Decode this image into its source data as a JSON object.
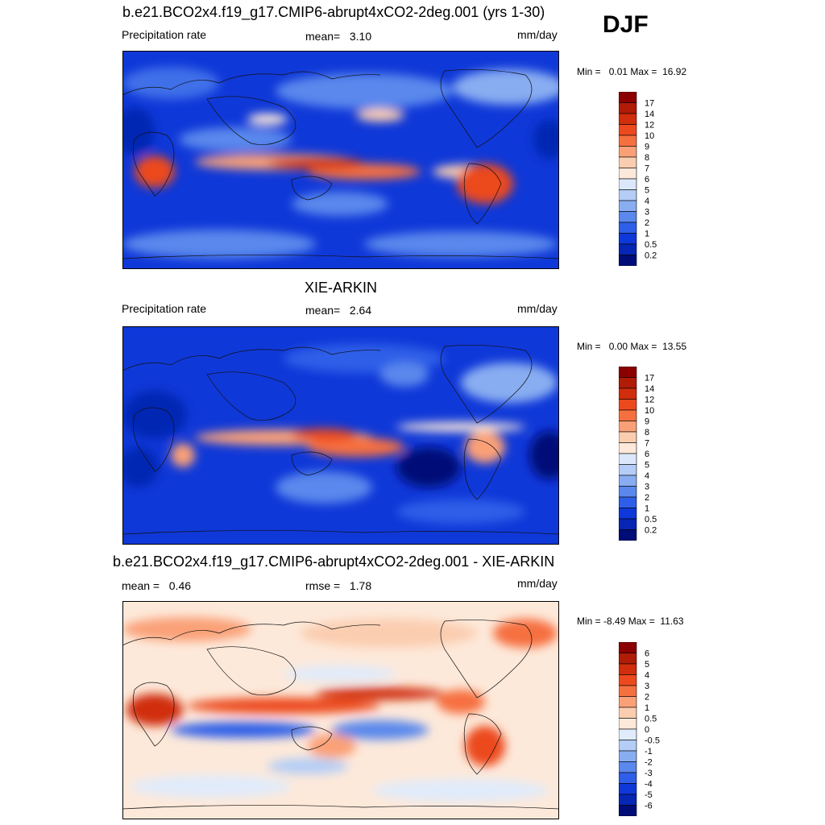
{
  "season": "DJF",
  "units": "mm/day",
  "panels": [
    {
      "id": "model",
      "title": "b.e21.BCO2x4.f19_g17.CMIP6-abrupt4xCO2-2deg.001 (yrs 1-30)",
      "left_label": "Precipitation rate",
      "stat_label": "mean=",
      "stat_value": "3.10",
      "units_label": "mm/day",
      "min_label": "Min =",
      "min_value": "0.01",
      "max_label": "Max =",
      "max_value": "16.92"
    },
    {
      "id": "obs",
      "title": "XIE-ARKIN",
      "left_label": "Precipitation rate",
      "stat_label": "mean=",
      "stat_value": "2.64",
      "units_label": "mm/day",
      "min_label": "Min =",
      "min_value": "0.00",
      "max_label": "Max =",
      "max_value": "13.55"
    },
    {
      "id": "diff",
      "title": "b.e21.BCO2x4.f19_g17.CMIP6-abrupt4xCO2-2deg.001 - XIE-ARKIN",
      "left_label": "mean =",
      "left_value": "0.46",
      "stat_label": "rmse =",
      "stat_value": "1.78",
      "units_label": "mm/day",
      "min_label": "Min =",
      "min_value": "-8.49",
      "max_label": "Max =",
      "max_value": "11.63"
    }
  ],
  "colorbars": {
    "precip": {
      "levels": [
        "17",
        "14",
        "12",
        "10",
        "9",
        "8",
        "7",
        "6",
        "5",
        "4",
        "3",
        "2",
        "1",
        "0.5",
        "0.2"
      ],
      "colors": [
        "#8b0000",
        "#b01c06",
        "#d02e0c",
        "#ec4a1e",
        "#f6703f",
        "#faa077",
        "#fbcdb0",
        "#fde9da",
        "#dbe8fb",
        "#b4cdf6",
        "#89adf1",
        "#5a88ec",
        "#2f5fe8",
        "#0f38d8",
        "#0626b3",
        "#000d78"
      ]
    },
    "diff": {
      "levels": [
        "6",
        "5",
        "4",
        "3",
        "2",
        "1",
        "0.5",
        "0",
        "-0.5",
        "-1",
        "-2",
        "-3",
        "-4",
        "-5",
        "-6"
      ],
      "colors": [
        "#8b0000",
        "#b01c06",
        "#d02e0c",
        "#ec4a1e",
        "#f6703f",
        "#faa077",
        "#fbcdb0",
        "#fde9da",
        "#e0ebfb",
        "#b4cdf6",
        "#89adf1",
        "#5a88ec",
        "#2f5fe8",
        "#0f38d8",
        "#0626b3",
        "#000d78"
      ]
    }
  },
  "chart_data": [
    {
      "type": "heatmap",
      "title": "b.e21.BCO2x4.f19_g17.CMIP6-abrupt4xCO2-2deg.001 (yrs 1-30)",
      "variable": "Precipitation rate",
      "units": "mm/day",
      "season": "DJF",
      "mean": 3.1,
      "min": 0.01,
      "max": 16.92,
      "contour_levels": [
        0.2,
        0.5,
        1,
        2,
        3,
        4,
        5,
        6,
        7,
        8,
        9,
        10,
        12,
        14,
        17
      ]
    },
    {
      "type": "heatmap",
      "title": "XIE-ARKIN",
      "variable": "Precipitation rate",
      "units": "mm/day",
      "season": "DJF",
      "mean": 2.64,
      "min": 0.0,
      "max": 13.55,
      "contour_levels": [
        0.2,
        0.5,
        1,
        2,
        3,
        4,
        5,
        6,
        7,
        8,
        9,
        10,
        12,
        14,
        17
      ]
    },
    {
      "type": "heatmap",
      "title": "b.e21.BCO2x4.f19_g17.CMIP6-abrupt4xCO2-2deg.001 - XIE-ARKIN",
      "units": "mm/day",
      "season": "DJF",
      "mean": 0.46,
      "rmse": 1.78,
      "min": -8.49,
      "max": 11.63,
      "contour_levels": [
        -6,
        -5,
        -4,
        -3,
        -2,
        -1,
        -0.5,
        0,
        0.5,
        1,
        2,
        3,
        4,
        5,
        6
      ]
    }
  ]
}
